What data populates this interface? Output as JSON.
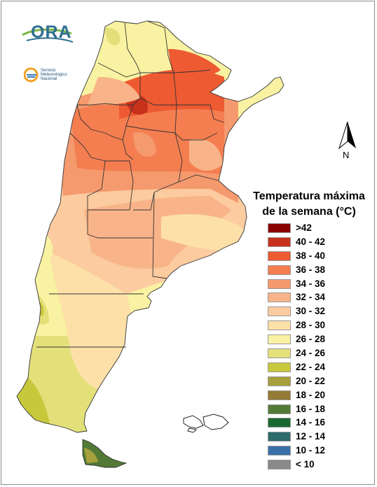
{
  "logos": {
    "ora": "ORA",
    "smn": "Servicio Meteorológico Nacional"
  },
  "north_arrow": {
    "label": "N"
  },
  "legend": {
    "title_line1": "Temperatura máxima",
    "title_line2": "de la semana (°C)",
    "classes": [
      {
        "label": ">42",
        "color": "#8b0000"
      },
      {
        "label": "40 - 42",
        "color": "#c8321c"
      },
      {
        "label": "38 - 40",
        "color": "#ee5a32"
      },
      {
        "label": "36 - 38",
        "color": "#f47e50"
      },
      {
        "label": "34 - 36",
        "color": "#f59a6e"
      },
      {
        "label": "32 - 34",
        "color": "#f8b488"
      },
      {
        "label": "30 - 32",
        "color": "#fccba0"
      },
      {
        "label": "28 - 30",
        "color": "#fde0a8"
      },
      {
        "label": "26 - 28",
        "color": "#f9f2a2"
      },
      {
        "label": "24 - 26",
        "color": "#e3e07a"
      },
      {
        "label": "22 - 24",
        "color": "#c8c83c"
      },
      {
        "label": "20 - 22",
        "color": "#a8a03c"
      },
      {
        "label": "18 - 20",
        "color": "#947a34"
      },
      {
        "label": "16 - 18",
        "color": "#527a36"
      },
      {
        "label": "14 - 16",
        "color": "#1a6a30"
      },
      {
        "label": "12 - 14",
        "color": "#2e6a6a"
      },
      {
        "label": "10 - 12",
        "color": "#3a70a8"
      },
      {
        "label": "< 10",
        "color": "#8a8a8a"
      }
    ]
  }
}
